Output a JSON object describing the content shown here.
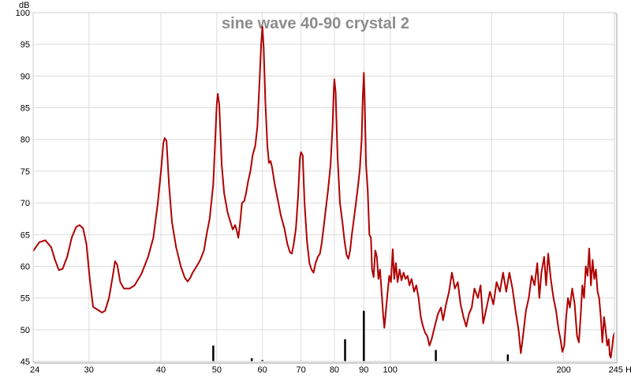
{
  "chart_data": {
    "type": "line",
    "title": "sine wave 40-90 crystal 2",
    "ylabel": "dB",
    "xunit": "Hz",
    "xscale": "log",
    "xlim": [
      24,
      245
    ],
    "ylim": [
      45,
      100
    ],
    "grid": true,
    "yticks": [
      45,
      50,
      55,
      60,
      65,
      70,
      75,
      80,
      85,
      90,
      95,
      100
    ],
    "xticks": [
      {
        "value": 24,
        "label": "24"
      },
      {
        "value": 30,
        "label": "30"
      },
      {
        "value": 40,
        "label": "40"
      },
      {
        "value": 50,
        "label": "50"
      },
      {
        "value": 60,
        "label": "60"
      },
      {
        "value": 70,
        "label": "70"
      },
      {
        "value": 80,
        "label": "80"
      },
      {
        "value": 90,
        "label": "90"
      },
      {
        "value": 100,
        "label": "100"
      },
      {
        "value": 200,
        "label": "200"
      },
      {
        "value": 245,
        "label": "245 Hz"
      }
    ],
    "xgrid": [
      24,
      30,
      40,
      50,
      60,
      70,
      80,
      90,
      100,
      150,
      200,
      245
    ],
    "series": [
      {
        "color": "#b00000",
        "points": [
          [
            24.0,
            62.4
          ],
          [
            24.6,
            63.8
          ],
          [
            25.2,
            64.1
          ],
          [
            25.8,
            63.0
          ],
          [
            26.2,
            61.0
          ],
          [
            26.6,
            59.4
          ],
          [
            27.0,
            59.6
          ],
          [
            27.5,
            61.5
          ],
          [
            28.0,
            64.5
          ],
          [
            28.5,
            66.2
          ],
          [
            28.9,
            66.5
          ],
          [
            29.3,
            66.0
          ],
          [
            29.7,
            63.5
          ],
          [
            30.1,
            58.0
          ],
          [
            30.5,
            53.6
          ],
          [
            31.0,
            53.2
          ],
          [
            31.6,
            52.7
          ],
          [
            32.0,
            53.0
          ],
          [
            32.5,
            55.0
          ],
          [
            33.0,
            58.5
          ],
          [
            33.3,
            60.8
          ],
          [
            33.6,
            60.2
          ],
          [
            34.0,
            57.5
          ],
          [
            34.5,
            56.5
          ],
          [
            35.3,
            56.5
          ],
          [
            36.0,
            57.0
          ],
          [
            37.0,
            58.8
          ],
          [
            38.0,
            61.5
          ],
          [
            38.8,
            64.5
          ],
          [
            39.5,
            70.0
          ],
          [
            40.0,
            75.0
          ],
          [
            40.4,
            79.5
          ],
          [
            40.6,
            80.2
          ],
          [
            40.9,
            79.8
          ],
          [
            41.3,
            73.0
          ],
          [
            41.8,
            67.0
          ],
          [
            42.5,
            63.0
          ],
          [
            43.3,
            60.0
          ],
          [
            44.0,
            58.2
          ],
          [
            44.5,
            57.6
          ],
          [
            45.0,
            58.2
          ],
          [
            45.4,
            59.0
          ],
          [
            46.0,
            59.8
          ],
          [
            46.8,
            61.0
          ],
          [
            47.5,
            62.5
          ],
          [
            48.0,
            65.0
          ],
          [
            48.6,
            67.5
          ],
          [
            49.3,
            73.0
          ],
          [
            49.7,
            80.0
          ],
          [
            50.0,
            85.5
          ],
          [
            50.2,
            87.2
          ],
          [
            50.5,
            85.5
          ],
          [
            51.0,
            76.0
          ],
          [
            51.5,
            71.5
          ],
          [
            52.2,
            68.5
          ],
          [
            52.8,
            67.0
          ],
          [
            53.3,
            65.8
          ],
          [
            53.8,
            66.5
          ],
          [
            54.2,
            65.5
          ],
          [
            54.5,
            64.5
          ],
          [
            54.9,
            67.0
          ],
          [
            55.3,
            70.0
          ],
          [
            55.8,
            70.3
          ],
          [
            56.2,
            71.5
          ],
          [
            56.7,
            73.5
          ],
          [
            57.2,
            75.0
          ],
          [
            57.7,
            77.5
          ],
          [
            58.3,
            79.0
          ],
          [
            58.8,
            82.0
          ],
          [
            59.3,
            89.0
          ],
          [
            59.7,
            95.0
          ],
          [
            60.0,
            97.8
          ],
          [
            60.3,
            94.5
          ],
          [
            60.7,
            86.0
          ],
          [
            61.2,
            79.0
          ],
          [
            61.6,
            76.3
          ],
          [
            62.0,
            76.6
          ],
          [
            62.4,
            75.5
          ],
          [
            63.0,
            73.0
          ],
          [
            63.8,
            70.5
          ],
          [
            64.6,
            68.0
          ],
          [
            65.5,
            66.0
          ],
          [
            66.3,
            63.5
          ],
          [
            67.0,
            62.2
          ],
          [
            67.5,
            62.0
          ],
          [
            68.0,
            63.5
          ],
          [
            68.6,
            66.0
          ],
          [
            69.2,
            71.0
          ],
          [
            69.7,
            77.0
          ],
          [
            70.0,
            78.0
          ],
          [
            70.5,
            77.5
          ],
          [
            71.0,
            70.0
          ],
          [
            71.7,
            64.0
          ],
          [
            72.4,
            60.5
          ],
          [
            73.0,
            59.5
          ],
          [
            73.6,
            59.0
          ],
          [
            74.2,
            60.5
          ],
          [
            74.9,
            61.5
          ],
          [
            75.5,
            62.0
          ],
          [
            76.0,
            63.5
          ],
          [
            76.6,
            66.0
          ],
          [
            77.3,
            69.0
          ],
          [
            78.0,
            72.0
          ],
          [
            78.8,
            76.0
          ],
          [
            79.4,
            82.0
          ],
          [
            79.8,
            87.5
          ],
          [
            80.0,
            89.5
          ],
          [
            80.4,
            87.5
          ],
          [
            81.0,
            77.5
          ],
          [
            81.8,
            70.0
          ],
          [
            82.6,
            67.0
          ],
          [
            83.3,
            64.0
          ],
          [
            84.0,
            61.8
          ],
          [
            84.6,
            61.2
          ],
          [
            85.2,
            62.5
          ],
          [
            85.8,
            65.0
          ],
          [
            86.5,
            67.5
          ],
          [
            87.2,
            70.0
          ],
          [
            88.0,
            73.0
          ],
          [
            88.6,
            75.5
          ],
          [
            89.2,
            80.0
          ],
          [
            89.6,
            86.5
          ],
          [
            90.0,
            90.5
          ],
          [
            90.3,
            86.0
          ],
          [
            90.8,
            76.0
          ],
          [
            91.4,
            72.0
          ],
          [
            92.0,
            65.0
          ],
          [
            92.6,
            64.5
          ],
          [
            93.0,
            59.5
          ],
          [
            93.6,
            58.3
          ],
          [
            94.2,
            62.5
          ],
          [
            94.8,
            61.5
          ],
          [
            95.4,
            58.0
          ],
          [
            96.0,
            59.5
          ],
          [
            96.6,
            56.0
          ],
          [
            97.2,
            52.5
          ],
          [
            97.7,
            50.3
          ],
          [
            98.3,
            53.0
          ],
          [
            99.0,
            56.0
          ],
          [
            99.6,
            58.5
          ],
          [
            100.3,
            57.5
          ],
          [
            101.0,
            62.7
          ],
          [
            101.6,
            58.0
          ],
          [
            102.3,
            60.5
          ],
          [
            103.0,
            57.5
          ],
          [
            103.8,
            59.5
          ],
          [
            104.6,
            57.8
          ],
          [
            105.5,
            59.0
          ],
          [
            106.3,
            58.0
          ],
          [
            107.2,
            58.5
          ],
          [
            108.0,
            57.0
          ],
          [
            108.9,
            58.0
          ],
          [
            110.0,
            56.0
          ],
          [
            111.0,
            57.0
          ],
          [
            112.0,
            55.0
          ],
          [
            113.0,
            52.0
          ],
          [
            114.0,
            50.5
          ],
          [
            115.0,
            49.5
          ],
          [
            116.0,
            49.0
          ],
          [
            117.0,
            47.5
          ],
          [
            118.0,
            48.5
          ],
          [
            119.5,
            50.5
          ],
          [
            121.0,
            52.5
          ],
          [
            122.5,
            53.5
          ],
          [
            123.5,
            51.5
          ],
          [
            125.0,
            54.0
          ],
          [
            126.5,
            56.0
          ],
          [
            128.0,
            59.0
          ],
          [
            129.5,
            56.5
          ],
          [
            131.0,
            57.5
          ],
          [
            132.5,
            54.0
          ],
          [
            134.0,
            52.0
          ],
          [
            135.5,
            50.5
          ],
          [
            137.0,
            52.5
          ],
          [
            138.5,
            53.5
          ],
          [
            140.0,
            56.5
          ],
          [
            142.0,
            55.0
          ],
          [
            143.5,
            57.0
          ],
          [
            145.0,
            51.0
          ],
          [
            147.0,
            53.5
          ],
          [
            149.0,
            56.0
          ],
          [
            151.0,
            54.0
          ],
          [
            153.0,
            57.5
          ],
          [
            155.0,
            56.0
          ],
          [
            157.0,
            59.0
          ],
          [
            159.0,
            56.0
          ],
          [
            161.0,
            59.0
          ],
          [
            163.0,
            56.5
          ],
          [
            165.0,
            53.0
          ],
          [
            167.0,
            50.0
          ],
          [
            168.5,
            46.3
          ],
          [
            170.0,
            49.0
          ],
          [
            172.0,
            53.0
          ],
          [
            174.0,
            55.0
          ],
          [
            176.0,
            58.5
          ],
          [
            178.0,
            57.0
          ],
          [
            180.0,
            60.5
          ],
          [
            181.5,
            55.0
          ],
          [
            183.0,
            59.0
          ],
          [
            185.0,
            61.5
          ],
          [
            186.5,
            57.0
          ],
          [
            188.0,
            62.0
          ],
          [
            190.0,
            58.0
          ],
          [
            192.0,
            55.0
          ],
          [
            194.0,
            53.0
          ],
          [
            196.0,
            50.0
          ],
          [
            197.5,
            48.5
          ],
          [
            199.0,
            46.5
          ],
          [
            200.5,
            47.5
          ],
          [
            202.0,
            52.0
          ],
          [
            203.5,
            55.0
          ],
          [
            205.0,
            53.5
          ],
          [
            207.0,
            56.5
          ],
          [
            209.0,
            54.0
          ],
          [
            211.0,
            49.0
          ],
          [
            212.5,
            48.0
          ],
          [
            214.0,
            52.0
          ],
          [
            215.5,
            57.0
          ],
          [
            217.0,
            55.0
          ],
          [
            218.5,
            60.0
          ],
          [
            220.0,
            58.5
          ],
          [
            221.5,
            62.8
          ],
          [
            223.0,
            57.0
          ],
          [
            224.5,
            61.0
          ],
          [
            226.0,
            58.0
          ],
          [
            227.5,
            59.5
          ],
          [
            229.0,
            56.0
          ],
          [
            230.5,
            55.0
          ],
          [
            232.0,
            52.0
          ],
          [
            233.5,
            48.0
          ],
          [
            235.0,
            52.0
          ],
          [
            236.5,
            50.0
          ],
          [
            238.0,
            47.5
          ],
          [
            239.5,
            48.5
          ],
          [
            240.5,
            46.0
          ],
          [
            241.5,
            45.6
          ],
          [
            243.0,
            47.5
          ],
          [
            244.0,
            49.0
          ],
          [
            245.0,
            49.5
          ]
        ]
      },
      {
        "color": "#000000",
        "type": "spikes",
        "points": [
          [
            49.3,
            47.5
          ],
          [
            57.5,
            45.5
          ],
          [
            60.0,
            45.2
          ],
          [
            83.5,
            48.5
          ],
          [
            90.0,
            53.0
          ],
          [
            120.0,
            46.8
          ],
          [
            160.0,
            46.1
          ]
        ]
      }
    ]
  }
}
